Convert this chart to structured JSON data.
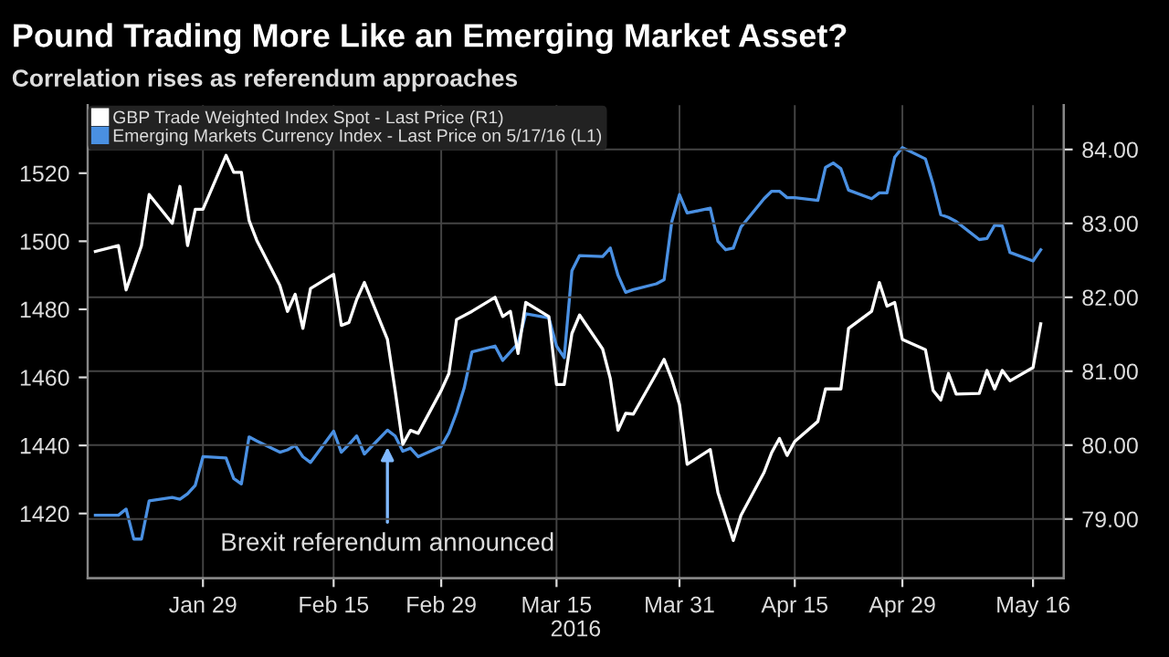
{
  "chart_data": {
    "type": "line",
    "title": "Pound Trading More Like an Emerging Market Asset?",
    "subtitle": "Correlation rises as referendum approaches",
    "xlabel": "2016",
    "legend": "top left",
    "grid": true,
    "marker": "none",
    "line_style": "solid",
    "xlim": [
      "2016-01-14",
      "2016-05-20"
    ],
    "xticks": [
      {
        "value": "2016-01-29",
        "label": "Jan 29"
      },
      {
        "value": "2016-02-15",
        "label": "Feb 15"
      },
      {
        "value": "2016-02-29",
        "label": "Feb 29"
      },
      {
        "value": "2016-03-15",
        "label": "Mar 15"
      },
      {
        "value": "2016-03-31",
        "label": "Mar 31"
      },
      {
        "value": "2016-04-15",
        "label": "Apr 15"
      },
      {
        "value": "2016-04-29",
        "label": "Apr 29"
      },
      {
        "value": "2016-05-16",
        "label": "May 16"
      }
    ],
    "ylim": [
      1401,
      1540
    ],
    "yticks": [
      1420,
      1440,
      1460,
      1480,
      1500,
      1520
    ],
    "y2lim": [
      78.2,
      84.6
    ],
    "y2ticks": [
      {
        "value": 79,
        "label": "79.00"
      },
      {
        "value": 80,
        "label": "80.00"
      },
      {
        "value": 81,
        "label": "81.00"
      },
      {
        "value": 82,
        "label": "82.00"
      },
      {
        "value": 83,
        "label": "83.00"
      },
      {
        "value": 84,
        "label": "84.00"
      }
    ],
    "annotations": [
      {
        "text": "Brexit referendum announced",
        "x": "2016-02-22",
        "y": 1441
      }
    ],
    "series": [
      {
        "name": "GBP Trade Weighted Index Spot - Last Price (R1)",
        "color": "#ffffff",
        "axis": "y2",
        "x": [
          "2016-01-15",
          "2016-01-18",
          "2016-01-19",
          "2016-01-21",
          "2016-01-22",
          "2016-01-25",
          "2016-01-26",
          "2016-01-27",
          "2016-01-28",
          "2016-01-29",
          "2016-02-01",
          "2016-02-02",
          "2016-02-03",
          "2016-02-04",
          "2016-02-05",
          "2016-02-08",
          "2016-02-09",
          "2016-02-10",
          "2016-02-11",
          "2016-02-12",
          "2016-02-15",
          "2016-02-16",
          "2016-02-17",
          "2016-02-18",
          "2016-02-19",
          "2016-02-22",
          "2016-02-23",
          "2016-02-24",
          "2016-02-25",
          "2016-02-26",
          "2016-02-29",
          "2016-03-01",
          "2016-03-02",
          "2016-03-04",
          "2016-03-07",
          "2016-03-08",
          "2016-03-09",
          "2016-03-10",
          "2016-03-11",
          "2016-03-14",
          "2016-03-15",
          "2016-03-16",
          "2016-03-17",
          "2016-03-18",
          "2016-03-21",
          "2016-03-22",
          "2016-03-23",
          "2016-03-24",
          "2016-03-25",
          "2016-03-28",
          "2016-03-29",
          "2016-03-30",
          "2016-03-31",
          "2016-04-01",
          "2016-04-04",
          "2016-04-05",
          "2016-04-07",
          "2016-04-08",
          "2016-04-11",
          "2016-04-12",
          "2016-04-13",
          "2016-04-14",
          "2016-04-15",
          "2016-04-18",
          "2016-04-19",
          "2016-04-20",
          "2016-04-21",
          "2016-04-22",
          "2016-04-25",
          "2016-04-26",
          "2016-04-27",
          "2016-04-28",
          "2016-04-29",
          "2016-05-02",
          "2016-05-03",
          "2016-05-04",
          "2016-05-05",
          "2016-05-06",
          "2016-05-09",
          "2016-05-10",
          "2016-05-11",
          "2016-05-12",
          "2016-05-13",
          "2016-05-16",
          "2016-05-17"
        ],
        "values": [
          82.62,
          82.7,
          82.1,
          82.7,
          83.39,
          83.0,
          83.5,
          82.7,
          83.19,
          83.19,
          83.92,
          83.69,
          83.69,
          83.04,
          82.77,
          82.16,
          81.81,
          82.04,
          81.58,
          82.12,
          82.31,
          81.62,
          81.66,
          81.97,
          82.2,
          81.43,
          80.74,
          80.01,
          80.2,
          80.16,
          80.74,
          80.97,
          81.7,
          81.81,
          82.0,
          81.74,
          81.81,
          81.24,
          81.93,
          81.74,
          80.82,
          80.82,
          81.51,
          81.76,
          81.3,
          80.9,
          80.2,
          80.43,
          80.42,
          80.97,
          81.16,
          80.89,
          80.55,
          79.74,
          79.94,
          79.36,
          78.71,
          79.05,
          79.63,
          79.9,
          80.09,
          79.86,
          80.05,
          80.32,
          80.76,
          80.76,
          80.76,
          81.58,
          81.81,
          82.2,
          81.88,
          81.93,
          81.43,
          81.29,
          80.74,
          80.61,
          80.97,
          80.69,
          80.7,
          81.01,
          80.76,
          81.01,
          80.87,
          81.05,
          81.64
        ]
      },
      {
        "name": "Emerging Markets Currency Index - Last Price on 5/17/16 (L1)",
        "color": "#4a90e2",
        "x": [
          "2016-01-15",
          "2016-01-18",
          "2016-01-19",
          "2016-01-20",
          "2016-01-21",
          "2016-01-22",
          "2016-01-25",
          "2016-01-26",
          "2016-01-27",
          "2016-01-28",
          "2016-01-29",
          "2016-02-01",
          "2016-02-02",
          "2016-02-03",
          "2016-02-04",
          "2016-02-05",
          "2016-02-08",
          "2016-02-09",
          "2016-02-10",
          "2016-02-11",
          "2016-02-12",
          "2016-02-15",
          "2016-02-16",
          "2016-02-17",
          "2016-02-18",
          "2016-02-19",
          "2016-02-22",
          "2016-02-23",
          "2016-02-24",
          "2016-02-25",
          "2016-02-26",
          "2016-02-29",
          "2016-03-01",
          "2016-03-02",
          "2016-03-03",
          "2016-03-04",
          "2016-03-07",
          "2016-03-08",
          "2016-03-09",
          "2016-03-10",
          "2016-03-11",
          "2016-03-14",
          "2016-03-15",
          "2016-03-16",
          "2016-03-17",
          "2016-03-18",
          "2016-03-21",
          "2016-03-22",
          "2016-03-23",
          "2016-03-24",
          "2016-03-25",
          "2016-03-28",
          "2016-03-29",
          "2016-03-30",
          "2016-03-31",
          "2016-04-01",
          "2016-04-04",
          "2016-04-05",
          "2016-04-06",
          "2016-04-07",
          "2016-04-08",
          "2016-04-11",
          "2016-04-12",
          "2016-04-13",
          "2016-04-14",
          "2016-04-15",
          "2016-04-18",
          "2016-04-19",
          "2016-04-20",
          "2016-04-21",
          "2016-04-22",
          "2016-04-25",
          "2016-04-26",
          "2016-04-27",
          "2016-04-28",
          "2016-04-29",
          "2016-05-02",
          "2016-05-03",
          "2016-05-04",
          "2016-05-05",
          "2016-05-06",
          "2016-05-09",
          "2016-05-10",
          "2016-05-11",
          "2016-05-12",
          "2016-05-13",
          "2016-05-16",
          "2016-05-17"
        ],
        "values": [
          1419.5,
          1419.5,
          1421.3,
          1412.5,
          1412.5,
          1423.7,
          1424.7,
          1424.2,
          1425.8,
          1428.3,
          1436.7,
          1436.3,
          1430.3,
          1428.7,
          1442.5,
          1441.3,
          1438,
          1438.7,
          1440,
          1436.7,
          1435,
          1444.2,
          1438,
          1440.3,
          1442.8,
          1437.5,
          1444.5,
          1442.8,
          1438.3,
          1439.2,
          1436.7,
          1439.7,
          1443.7,
          1449.7,
          1457,
          1467.5,
          1469.2,
          1465,
          1467.5,
          1470,
          1478.7,
          1477.5,
          1469.2,
          1465.8,
          1491.3,
          1495.8,
          1495.5,
          1498,
          1490,
          1485,
          1485.8,
          1487.5,
          1488.7,
          1505.8,
          1513.7,
          1508.3,
          1509.7,
          1500,
          1497.5,
          1498,
          1504.2,
          1512.5,
          1514.7,
          1514.7,
          1512.8,
          1512.8,
          1512,
          1521.7,
          1523,
          1521.3,
          1515,
          1512.5,
          1514.2,
          1514.2,
          1524.7,
          1527.5,
          1524.2,
          1516.7,
          1507.8,
          1507,
          1505.8,
          1500.5,
          1500.8,
          1504.7,
          1504.5,
          1496.7,
          1494.2,
          1497.5
        ]
      }
    ]
  }
}
